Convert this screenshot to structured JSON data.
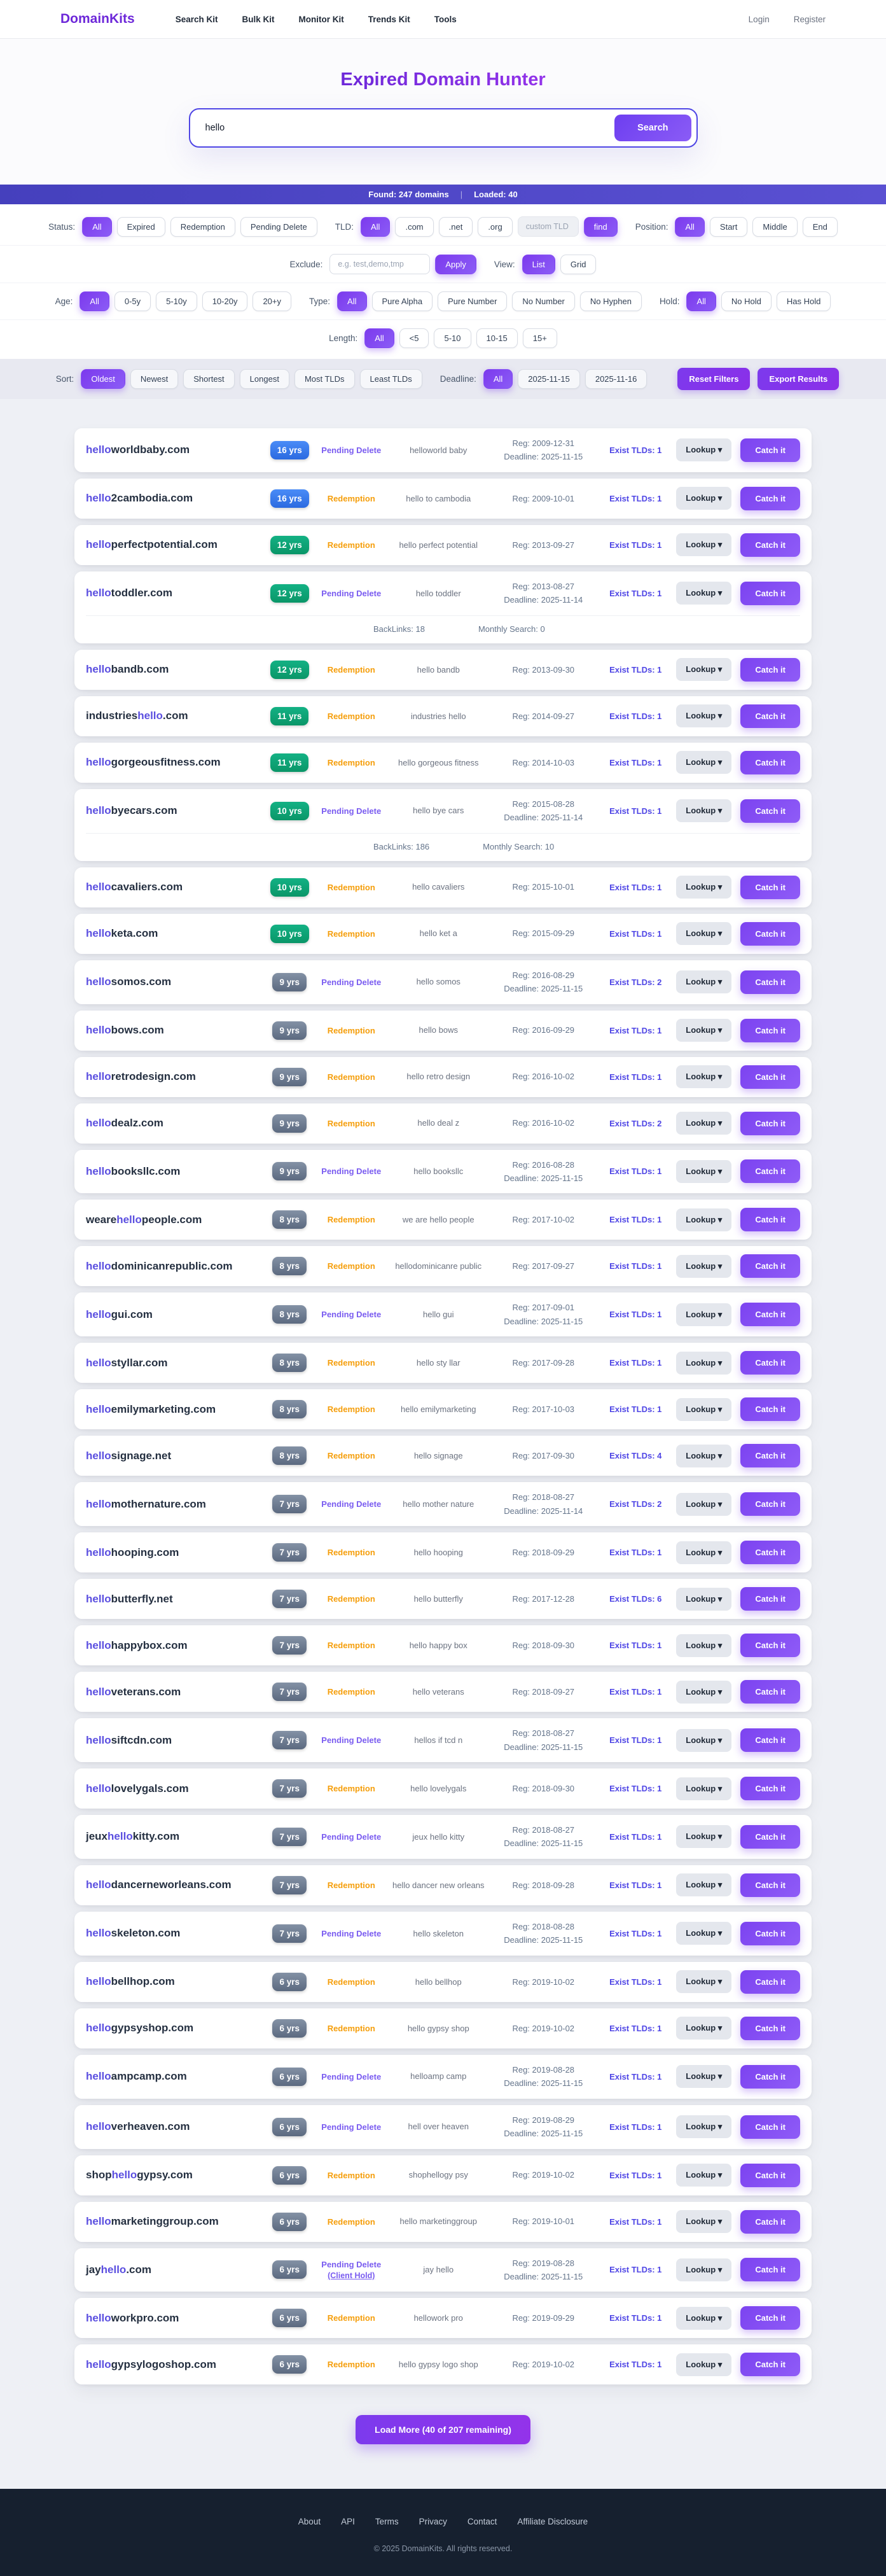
{
  "header": {
    "logo": "DomainKits",
    "nav": [
      "Search Kit",
      "Bulk Kit",
      "Monitor Kit",
      "Trends Kit",
      "Tools"
    ],
    "auth": [
      "Login",
      "Register"
    ]
  },
  "hero": {
    "title": "Expired Domain Hunter",
    "search_value": "hello",
    "search_button": "Search"
  },
  "result_bar": {
    "found": "Found: 247 domains",
    "separator": "|",
    "loaded": "Loaded: 40"
  },
  "filters": {
    "status": {
      "label": "Status:",
      "options": [
        "All",
        "Expired",
        "Redemption",
        "Pending Delete"
      ],
      "active": "All"
    },
    "tld": {
      "label": "TLD:",
      "options": [
        "All",
        ".com",
        ".net",
        ".org"
      ],
      "active": "All",
      "custom_placeholder": "custom TLD",
      "find_button": "find"
    },
    "position": {
      "label": "Position:",
      "options": [
        "All",
        "Start",
        "Middle",
        "End"
      ],
      "active": "All"
    },
    "exclude": {
      "label": "Exclude:",
      "placeholder": "e.g. test,demo,tmp",
      "apply_button": "Apply"
    },
    "view": {
      "label": "View:",
      "options": [
        "List",
        "Grid"
      ],
      "active": "List"
    },
    "age": {
      "label": "Age:",
      "options": [
        "All",
        "0-5y",
        "5-10y",
        "10-20y",
        "20+y"
      ],
      "active": "All"
    },
    "type": {
      "label": "Type:",
      "options": [
        "All",
        "Pure Alpha",
        "Pure Number",
        "No Number",
        "No Hyphen"
      ],
      "active": "All"
    },
    "hold": {
      "label": "Hold:",
      "options": [
        "All",
        "No Hold",
        "Has Hold"
      ],
      "active": "All"
    },
    "length": {
      "label": "Length:",
      "options": [
        "All",
        "<5",
        "5-10",
        "10-15",
        "15+"
      ],
      "active": "All"
    },
    "sort": {
      "label": "Sort:",
      "options": [
        "Oldest",
        "Newest",
        "Shortest",
        "Longest",
        "Most TLDs",
        "Least TLDs"
      ],
      "active": "Oldest"
    },
    "deadline": {
      "label": "Deadline:",
      "options": [
        "All",
        "2025-11-15",
        "2025-11-16"
      ],
      "active": "All"
    },
    "reset_button": "Reset Filters",
    "export_button": "Export Results"
  },
  "table": {
    "lookup_label": "Lookup ▾",
    "catch_label": "Catch it",
    "rows": [
      {
        "pre": "",
        "match": "hello",
        "post": "worldbaby.com",
        "age": "16 yrs",
        "age_color": "blue",
        "status": "Pending Delete",
        "desc": "helloworld baby",
        "reg": "Reg: 2009-12-31",
        "deadline": "Deadline: 2025-11-15",
        "exist": "Exist TLDs: 1"
      },
      {
        "pre": "",
        "match": "hello",
        "post": "2cambodia.com",
        "age": "16 yrs",
        "age_color": "blue",
        "status": "Redemption",
        "desc": "hello to cambodia",
        "reg": "Reg: 2009-10-01",
        "exist": "Exist TLDs: 1"
      },
      {
        "pre": "",
        "match": "hello",
        "post": "perfectpotential.com",
        "age": "12 yrs",
        "age_color": "green",
        "status": "Redemption",
        "desc": "hello perfect potential",
        "reg": "Reg: 2013-09-27",
        "exist": "Exist TLDs: 1"
      },
      {
        "pre": "",
        "match": "hello",
        "post": "toddler.com",
        "age": "12 yrs",
        "age_color": "green",
        "status": "Pending Delete",
        "desc": "hello toddler",
        "reg": "Reg: 2013-08-27",
        "deadline": "Deadline: 2025-11-14",
        "exist": "Exist TLDs: 1",
        "backlinks": {
          "links": "BackLinks: 18",
          "search": "Monthly Search: 0"
        }
      },
      {
        "pre": "",
        "match": "hello",
        "post": "bandb.com",
        "age": "12 yrs",
        "age_color": "green",
        "status": "Redemption",
        "desc": "hello bandb",
        "reg": "Reg: 2013-09-30",
        "exist": "Exist TLDs: 1"
      },
      {
        "pre": "industries",
        "match": "hello",
        "post": ".com",
        "age": "11 yrs",
        "age_color": "green",
        "status": "Redemption",
        "desc": "industries hello",
        "reg": "Reg: 2014-09-27",
        "exist": "Exist TLDs: 1"
      },
      {
        "pre": "",
        "match": "hello",
        "post": "gorgeousfitness.com",
        "age": "11 yrs",
        "age_color": "green",
        "status": "Redemption",
        "desc": "hello gorgeous fitness",
        "reg": "Reg: 2014-10-03",
        "exist": "Exist TLDs: 1"
      },
      {
        "pre": "",
        "match": "hello",
        "post": "byecars.com",
        "age": "10 yrs",
        "age_color": "green",
        "status": "Pending Delete",
        "desc": "hello bye cars",
        "reg": "Reg: 2015-08-28",
        "deadline": "Deadline: 2025-11-14",
        "exist": "Exist TLDs: 1",
        "backlinks": {
          "links": "BackLinks: 186",
          "search": "Monthly Search: 10"
        }
      },
      {
        "pre": "",
        "match": "hello",
        "post": "cavaliers.com",
        "age": "10 yrs",
        "age_color": "green",
        "status": "Redemption",
        "desc": "hello cavaliers",
        "reg": "Reg: 2015-10-01",
        "exist": "Exist TLDs: 1"
      },
      {
        "pre": "",
        "match": "hello",
        "post": "keta.com",
        "age": "10 yrs",
        "age_color": "green",
        "status": "Redemption",
        "desc": "hello ket a",
        "reg": "Reg: 2015-09-29",
        "exist": "Exist TLDs: 1"
      },
      {
        "pre": "",
        "match": "hello",
        "post": "somos.com",
        "age": "9 yrs",
        "age_color": "gray",
        "status": "Pending Delete",
        "desc": "hello somos",
        "reg": "Reg: 2016-08-29",
        "deadline": "Deadline: 2025-11-15",
        "exist": "Exist TLDs: 2"
      },
      {
        "pre": "",
        "match": "hello",
        "post": "bows.com",
        "age": "9 yrs",
        "age_color": "gray",
        "status": "Redemption",
        "desc": "hello bows",
        "reg": "Reg: 2016-09-29",
        "exist": "Exist TLDs: 1"
      },
      {
        "pre": "",
        "match": "hello",
        "post": "retrodesign.com",
        "age": "9 yrs",
        "age_color": "gray",
        "status": "Redemption",
        "desc": "hello retro design",
        "reg": "Reg: 2016-10-02",
        "exist": "Exist TLDs: 1"
      },
      {
        "pre": "",
        "match": "hello",
        "post": "dealz.com",
        "age": "9 yrs",
        "age_color": "gray",
        "status": "Redemption",
        "desc": "hello deal z",
        "reg": "Reg: 2016-10-02",
        "exist": "Exist TLDs: 2"
      },
      {
        "pre": "",
        "match": "hello",
        "post": "booksllc.com",
        "age": "9 yrs",
        "age_color": "gray",
        "status": "Pending Delete",
        "desc": "hello booksllc",
        "reg": "Reg: 2016-08-28",
        "deadline": "Deadline: 2025-11-15",
        "exist": "Exist TLDs: 1"
      },
      {
        "pre": "weare",
        "match": "hello",
        "post": "people.com",
        "age": "8 yrs",
        "age_color": "gray",
        "status": "Redemption",
        "desc": "we are hello people",
        "reg": "Reg: 2017-10-02",
        "exist": "Exist TLDs: 1"
      },
      {
        "pre": "",
        "match": "hello",
        "post": "dominicanrepublic.com",
        "age": "8 yrs",
        "age_color": "gray",
        "status": "Redemption",
        "desc": "hellodominicanre public",
        "reg": "Reg: 2017-09-27",
        "exist": "Exist TLDs: 1"
      },
      {
        "pre": "",
        "match": "hello",
        "post": "gui.com",
        "age": "8 yrs",
        "age_color": "gray",
        "status": "Pending Delete",
        "desc": "hello gui",
        "reg": "Reg: 2017-09-01",
        "deadline": "Deadline: 2025-11-15",
        "exist": "Exist TLDs: 1"
      },
      {
        "pre": "",
        "match": "hello",
        "post": "styllar.com",
        "age": "8 yrs",
        "age_color": "gray",
        "status": "Redemption",
        "desc": "hello sty llar",
        "reg": "Reg: 2017-09-28",
        "exist": "Exist TLDs: 1"
      },
      {
        "pre": "",
        "match": "hello",
        "post": "emilymarketing.com",
        "age": "8 yrs",
        "age_color": "gray",
        "status": "Redemption",
        "desc": "hello emilymarketing",
        "reg": "Reg: 2017-10-03",
        "exist": "Exist TLDs: 1"
      },
      {
        "pre": "",
        "match": "hello",
        "post": "signage.net",
        "age": "8 yrs",
        "age_color": "gray",
        "status": "Redemption",
        "desc": "hello signage",
        "reg": "Reg: 2017-09-30",
        "exist": "Exist TLDs: 4"
      },
      {
        "pre": "",
        "match": "hello",
        "post": "mothernature.com",
        "age": "7 yrs",
        "age_color": "gray",
        "status": "Pending Delete",
        "desc": "hello mother nature",
        "reg": "Reg: 2018-08-27",
        "deadline": "Deadline: 2025-11-14",
        "exist": "Exist TLDs: 2"
      },
      {
        "pre": "",
        "match": "hello",
        "post": "hooping.com",
        "age": "7 yrs",
        "age_color": "gray",
        "status": "Redemption",
        "desc": "hello hooping",
        "reg": "Reg: 2018-09-29",
        "exist": "Exist TLDs: 1"
      },
      {
        "pre": "",
        "match": "hello",
        "post": "butterfly.net",
        "age": "7 yrs",
        "age_color": "gray",
        "status": "Redemption",
        "desc": "hello butterfly",
        "reg": "Reg: 2017-12-28",
        "exist": "Exist TLDs: 6"
      },
      {
        "pre": "",
        "match": "hello",
        "post": "happybox.com",
        "age": "7 yrs",
        "age_color": "gray",
        "status": "Redemption",
        "desc": "hello happy box",
        "reg": "Reg: 2018-09-30",
        "exist": "Exist TLDs: 1"
      },
      {
        "pre": "",
        "match": "hello",
        "post": "veterans.com",
        "age": "7 yrs",
        "age_color": "gray",
        "status": "Redemption",
        "desc": "hello veterans",
        "reg": "Reg: 2018-09-27",
        "exist": "Exist TLDs: 1"
      },
      {
        "pre": "",
        "match": "hello",
        "post": "siftcdn.com",
        "age": "7 yrs",
        "age_color": "gray",
        "status": "Pending Delete",
        "desc": "hellos if tcd n",
        "reg": "Reg: 2018-08-27",
        "deadline": "Deadline: 2025-11-15",
        "exist": "Exist TLDs: 1"
      },
      {
        "pre": "",
        "match": "hello",
        "post": "lovelygals.com",
        "age": "7 yrs",
        "age_color": "gray",
        "status": "Redemption",
        "desc": "hello lovelygals",
        "reg": "Reg: 2018-09-30",
        "exist": "Exist TLDs: 1"
      },
      {
        "pre": "jeux",
        "match": "hello",
        "post": "kitty.com",
        "age": "7 yrs",
        "age_color": "gray",
        "status": "Pending Delete",
        "desc": "jeux hello kitty",
        "reg": "Reg: 2018-08-27",
        "deadline": "Deadline: 2025-11-15",
        "exist": "Exist TLDs: 1"
      },
      {
        "pre": "",
        "match": "hello",
        "post": "dancerneworleans.com",
        "age": "7 yrs",
        "age_color": "gray",
        "status": "Redemption",
        "desc": "hello dancer new orleans",
        "reg": "Reg: 2018-09-28",
        "exist": "Exist TLDs: 1"
      },
      {
        "pre": "",
        "match": "hello",
        "post": "skeleton.com",
        "age": "7 yrs",
        "age_color": "gray",
        "status": "Pending Delete",
        "desc": "hello skeleton",
        "reg": "Reg: 2018-08-28",
        "deadline": "Deadline: 2025-11-15",
        "exist": "Exist TLDs: 1"
      },
      {
        "pre": "",
        "match": "hello",
        "post": "bellhop.com",
        "age": "6 yrs",
        "age_color": "gray",
        "status": "Redemption",
        "desc": "hello bellhop",
        "reg": "Reg: 2019-10-02",
        "exist": "Exist TLDs: 1"
      },
      {
        "pre": "",
        "match": "hello",
        "post": "gypsyshop.com",
        "age": "6 yrs",
        "age_color": "gray",
        "status": "Redemption",
        "desc": "hello gypsy shop",
        "reg": "Reg: 2019-10-02",
        "exist": "Exist TLDs: 1"
      },
      {
        "pre": "",
        "match": "hello",
        "post": "ampcamp.com",
        "age": "6 yrs",
        "age_color": "gray",
        "status": "Pending Delete",
        "desc": "helloamp camp",
        "reg": "Reg: 2019-08-28",
        "deadline": "Deadline: 2025-11-15",
        "exist": "Exist TLDs: 1"
      },
      {
        "pre": "",
        "match": "hello",
        "post": "verheaven.com",
        "age": "6 yrs",
        "age_color": "gray",
        "status": "Pending Delete",
        "desc": "hell over heaven",
        "reg": "Reg: 2019-08-29",
        "deadline": "Deadline: 2025-11-15",
        "exist": "Exist TLDs: 1"
      },
      {
        "pre": "shop",
        "match": "hello",
        "post": "gypsy.com",
        "age": "6 yrs",
        "age_color": "gray",
        "status": "Redemption",
        "desc": "shophellogy psy",
        "reg": "Reg: 2019-10-02",
        "exist": "Exist TLDs: 1"
      },
      {
        "pre": "",
        "match": "hello",
        "post": "marketinggroup.com",
        "age": "6 yrs",
        "age_color": "gray",
        "status": "Redemption",
        "desc": "hello marketinggroup",
        "reg": "Reg: 2019-10-01",
        "exist": "Exist TLDs: 1"
      },
      {
        "pre": "jay",
        "match": "hello",
        "post": ".com",
        "age": "6 yrs",
        "age_color": "gray",
        "status": "Pending Delete",
        "status_extra": "(Client Hold)",
        "desc": "jay hello",
        "reg": "Reg: 2019-08-28",
        "deadline": "Deadline: 2025-11-15",
        "exist": "Exist TLDs: 1"
      },
      {
        "pre": "",
        "match": "hello",
        "post": "workpro.com",
        "age": "6 yrs",
        "age_color": "gray",
        "status": "Redemption",
        "desc": "hellowork pro",
        "reg": "Reg: 2019-09-29",
        "exist": "Exist TLDs: 1"
      },
      {
        "pre": "",
        "match": "hello",
        "post": "gypsylogoshop.com",
        "age": "6 yrs",
        "age_color": "gray",
        "status": "Redemption",
        "desc": "hello gypsy logo shop",
        "reg": "Reg: 2019-10-02",
        "exist": "Exist TLDs: 1"
      }
    ]
  },
  "load_more": "Load More (40 of 207 remaining)",
  "footer": {
    "links": [
      "About",
      "API",
      "Terms",
      "Privacy",
      "Contact",
      "Affiliate Disclosure"
    ],
    "copyright": "© 2025 DomainKits. All rights reserved."
  },
  "colors": {
    "accent": "#7c3aed",
    "badge_blue": "#3b82f6",
    "badge_green": "#10a87c",
    "badge_gray": "#6e7b8f",
    "status_pending": "#7a5cf0",
    "status_redemption": "#f59e0b",
    "exist_tld": "#4f46e5"
  }
}
